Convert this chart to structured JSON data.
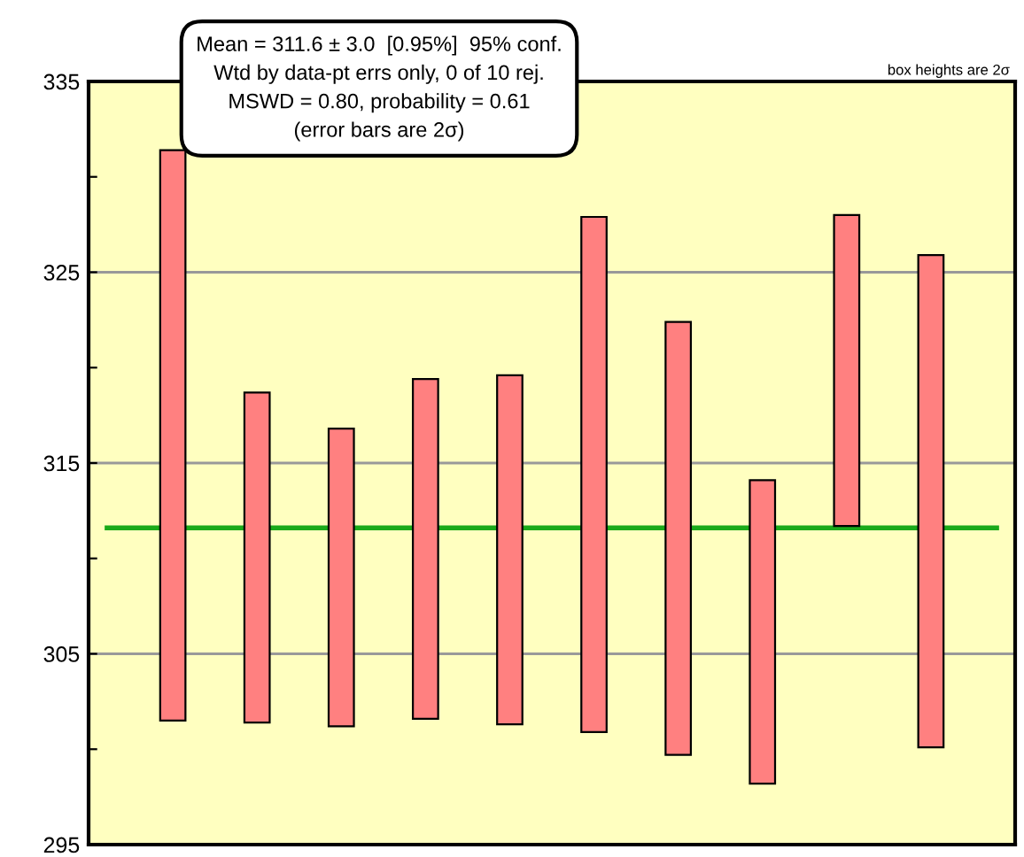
{
  "chart_data": {
    "type": "bar",
    "categories": [
      null,
      null,
      null,
      null,
      null,
      null,
      null,
      null,
      null,
      null
    ],
    "base": [
      301.5,
      301.4,
      301.2,
      301.6,
      301.3,
      300.9,
      299.7,
      298.2,
      311.7,
      300.1
    ],
    "values": [
      29.9,
      17.3,
      15.6,
      17.8,
      18.3,
      27.0,
      22.7,
      15.9,
      16.3,
      25.8
    ],
    "color": "#ff8080",
    "ylim": [
      295,
      335
    ],
    "yticks": [
      295,
      {
        "value": 300,
        "label": null
      },
      305,
      {
        "value": 310,
        "label": null
      },
      315,
      {
        "value": 320,
        "label": null
      },
      325,
      {
        "value": 330,
        "label": null
      },
      335
    ],
    "grid": "y",
    "ref_lines": [
      {
        "axis": "y",
        "value": 311.6,
        "label": null,
        "color": "#1aaa1a"
      }
    ],
    "annotations": [
      "Mean = 311.6 ± 3.0  [0.95%]  95% conf.\nWtd by data-pt errs only, 0 of 10 rej.\nMSWD = 0.80, probability = 0.61\n(error bars are 2σ)",
      "box heights are 2σ"
    ]
  }
}
